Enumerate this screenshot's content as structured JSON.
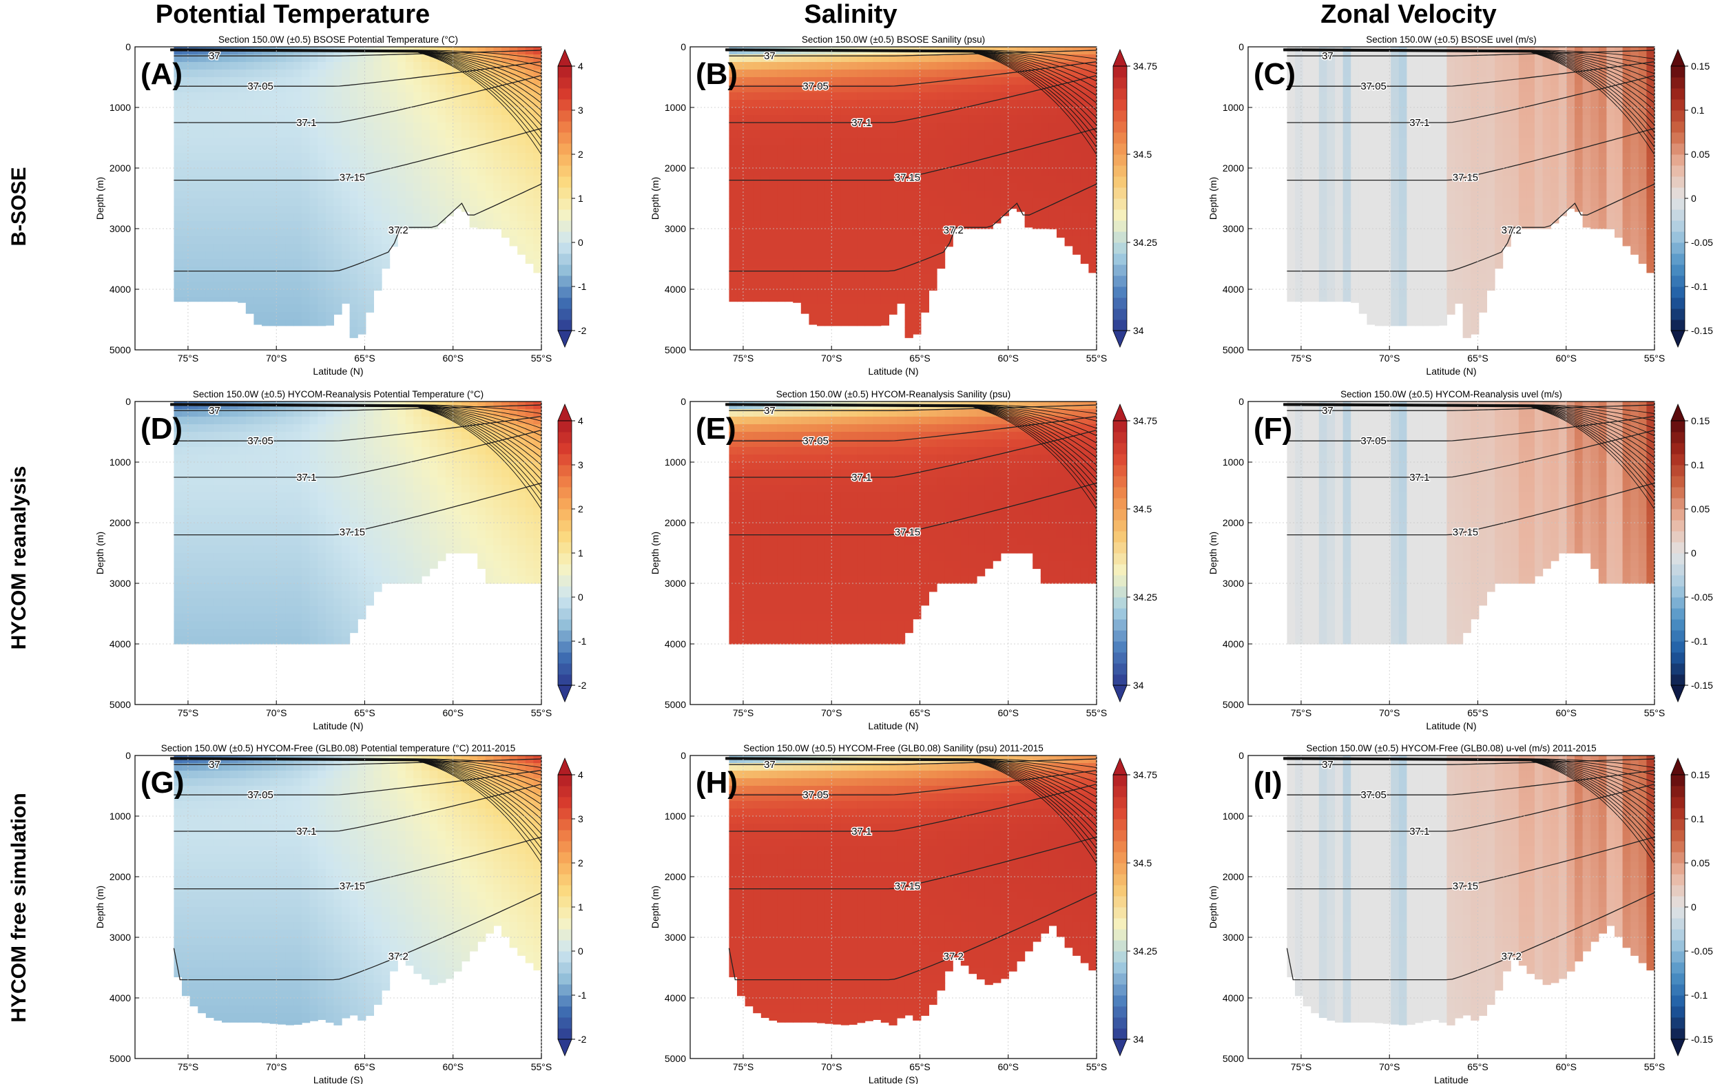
{
  "figure": {
    "column_titles": [
      "Potential Temperature",
      "Salinity",
      "Zonal Velocity"
    ],
    "row_titles": [
      "B-SOSE",
      "HYCOM reanalysis",
      "HYCOM free simulation"
    ]
  },
  "colormaps": {
    "theta": [
      "#2c3a8f",
      "#3f6fb3",
      "#8fbcd8",
      "#cfe6ef",
      "#f6f3c2",
      "#fbdc82",
      "#f9b05d",
      "#ee7b44",
      "#d93d2e",
      "#b11d24"
    ],
    "salt": [
      "#2c3a8f",
      "#4d7fbd",
      "#a6cfe2",
      "#f6f3c2",
      "#f7c671",
      "#ef8d4d",
      "#dd4a33",
      "#b11d24"
    ],
    "uvel": [
      "#0e1b47",
      "#1d5aa3",
      "#4f93c6",
      "#a8cbe0",
      "#e3e3e3",
      "#e9b49f",
      "#cf6a46",
      "#a72a1d",
      "#5c0b0d"
    ]
  },
  "chart_data": [
    {
      "type": "heatmap",
      "panel_label": "(A)",
      "title": "Section 150.0W (±0.5) BSOSE Potential Temperature (°C)",
      "xlabel": "Latitude (N)",
      "ylabel": "Depth (m)",
      "x_ticks": [
        "75°S",
        "70°S",
        "65°S",
        "60°S",
        "55°S"
      ],
      "y_ticks": [
        "0",
        "1000",
        "2000",
        "3000",
        "4000",
        "5000"
      ],
      "xlim": [
        -78,
        -55
      ],
      "ylim": [
        5000,
        0
      ],
      "colorbar": {
        "ticks": [
          "-2",
          "-1",
          "0",
          "1",
          "2",
          "3",
          "4"
        ],
        "range": [
          -2,
          4
        ],
        "cmap": "theta"
      },
      "sigma_labels": [
        "37",
        "37.05",
        "37.1",
        "37.15",
        "37.2"
      ],
      "bottom_profile": "bsose",
      "variable": "theta"
    },
    {
      "type": "heatmap",
      "panel_label": "(B)",
      "title": "Section 150.0W (±0.5) BSOSE Sanility (psu)",
      "xlabel": "Latitude (N)",
      "ylabel": "Depth (m)",
      "x_ticks": [
        "75°S",
        "70°S",
        "65°S",
        "60°S",
        "55°S"
      ],
      "y_ticks": [
        "0",
        "1000",
        "2000",
        "3000",
        "4000",
        "5000"
      ],
      "xlim": [
        -78,
        -55
      ],
      "ylim": [
        5000,
        0
      ],
      "colorbar": {
        "ticks": [
          "34",
          "34.25",
          "34.5",
          "34.75"
        ],
        "range": [
          34,
          34.75
        ],
        "cmap": "salt"
      },
      "sigma_labels": [
        "37",
        "37.05",
        "37.1",
        "37.15",
        "37.2"
      ],
      "bottom_profile": "bsose",
      "variable": "salt"
    },
    {
      "type": "heatmap",
      "panel_label": "(C)",
      "title": "Section 150.0W (±0.5) BSOSE uvel (m/s)",
      "xlabel": "Latitude (N)",
      "ylabel": "Depth (m)",
      "x_ticks": [
        "75°S",
        "70°S",
        "65°S",
        "60°S",
        "55°S"
      ],
      "y_ticks": [
        "0",
        "1000",
        "2000",
        "3000",
        "4000",
        "5000"
      ],
      "xlim": [
        -78,
        -55
      ],
      "ylim": [
        5000,
        0
      ],
      "colorbar": {
        "ticks": [
          "-0.15",
          "-0.1",
          "-0.05",
          "0",
          "0.05",
          "0.1",
          "0.15"
        ],
        "range": [
          -0.15,
          0.15
        ],
        "cmap": "uvel"
      },
      "sigma_labels": [
        "37",
        "37.05",
        "37.1",
        "37.15",
        "37.2"
      ],
      "bottom_profile": "bsose",
      "variable": "uvel"
    },
    {
      "type": "heatmap",
      "panel_label": "(D)",
      "title": "Section 150.0W (±0.5) HYCOM-Reanalysis Potential Temperature (°C)",
      "xlabel": "Latitude (N)",
      "ylabel": "Depth (m)",
      "x_ticks": [
        "75°S",
        "70°S",
        "65°S",
        "60°S",
        "55°S"
      ],
      "y_ticks": [
        "0",
        "1000",
        "2000",
        "3000",
        "4000",
        "5000"
      ],
      "xlim": [
        -78,
        -55
      ],
      "ylim": [
        5000,
        0
      ],
      "colorbar": {
        "ticks": [
          "-2",
          "-1",
          "0",
          "1",
          "2",
          "3",
          "4"
        ],
        "range": [
          -2,
          4
        ],
        "cmap": "theta"
      },
      "sigma_labels": [
        "37",
        "37.05",
        "37.1",
        "37.15"
      ],
      "bottom_profile": "reanalysis",
      "variable": "theta"
    },
    {
      "type": "heatmap",
      "panel_label": "(E)",
      "title": "Section 150.0W (±0.5) HYCOM-Reanalysis Sanility (psu)",
      "xlabel": "Latitude (N)",
      "ylabel": "Depth (m)",
      "x_ticks": [
        "75°S",
        "70°S",
        "65°S",
        "60°S",
        "55°S"
      ],
      "y_ticks": [
        "0",
        "1000",
        "2000",
        "3000",
        "4000",
        "5000"
      ],
      "xlim": [
        -78,
        -55
      ],
      "ylim": [
        5000,
        0
      ],
      "colorbar": {
        "ticks": [
          "34",
          "34.25",
          "34.5",
          "34.75"
        ],
        "range": [
          34,
          34.75
        ],
        "cmap": "salt"
      },
      "sigma_labels": [
        "37",
        "37.05",
        "37.1",
        "37.15"
      ],
      "bottom_profile": "reanalysis",
      "variable": "salt"
    },
    {
      "type": "heatmap",
      "panel_label": "(F)",
      "title": "Section 150.0W (±0.5) HYCOM-Reanalysis uvel (m/s)",
      "xlabel": "Latitude (N)",
      "ylabel": "Depth (m)",
      "x_ticks": [
        "75°S",
        "70°S",
        "65°S",
        "60°S",
        "55°S"
      ],
      "y_ticks": [
        "0",
        "1000",
        "2000",
        "3000",
        "4000",
        "5000"
      ],
      "xlim": [
        -78,
        -55
      ],
      "ylim": [
        5000,
        0
      ],
      "colorbar": {
        "ticks": [
          "-0.15",
          "-0.1",
          "-0.05",
          "0",
          "0.05",
          "0.1",
          "0.15"
        ],
        "range": [
          -0.15,
          0.15
        ],
        "cmap": "uvel"
      },
      "sigma_labels": [
        "37",
        "37.05",
        "37.1",
        "37.15"
      ],
      "bottom_profile": "reanalysis",
      "variable": "uvel"
    },
    {
      "type": "heatmap",
      "panel_label": "(G)",
      "title": "Section 150.0W (±0.5) HYCOM-Free (GLB0.08) Potential temperature (°C) 2011-2015",
      "xlabel": "Latitude (S)",
      "ylabel": "Depth (m)",
      "x_ticks": [
        "75°S",
        "70°S",
        "65°S",
        "60°S",
        "55°S"
      ],
      "y_ticks": [
        "0",
        "1000",
        "2000",
        "3000",
        "4000",
        "5000"
      ],
      "xlim": [
        -78,
        -55
      ],
      "ylim": [
        5000,
        0
      ],
      "colorbar": {
        "ticks": [
          "-2",
          "-1",
          "0",
          "1",
          "2",
          "3",
          "4"
        ],
        "range": [
          -2,
          4
        ],
        "cmap": "theta"
      },
      "sigma_labels": [
        "37",
        "37.05",
        "37.1",
        "37.15",
        "37.2"
      ],
      "bottom_profile": "free",
      "variable": "theta"
    },
    {
      "type": "heatmap",
      "panel_label": "(H)",
      "title": "Section 150.0W (±0.5) HYCOM-Free (GLB0.08) Sanility (psu) 2011-2015",
      "xlabel": "Latitude (S)",
      "ylabel": "Depth (m)",
      "x_ticks": [
        "75°S",
        "70°S",
        "65°S",
        "60°S",
        "55°S"
      ],
      "y_ticks": [
        "0",
        "1000",
        "2000",
        "3000",
        "4000",
        "5000"
      ],
      "xlim": [
        -78,
        -55
      ],
      "ylim": [
        5000,
        0
      ],
      "colorbar": {
        "ticks": [
          "34",
          "34.25",
          "34.5",
          "34.75"
        ],
        "range": [
          34,
          34.75
        ],
        "cmap": "salt"
      },
      "sigma_labels": [
        "37",
        "37.05",
        "37.1",
        "37.15",
        "37.2"
      ],
      "bottom_profile": "free",
      "variable": "salt"
    },
    {
      "type": "heatmap",
      "panel_label": "(I)",
      "title": "Section 150.0W (±0.5) HYCOM-Free (GLB0.08) u-vel (m/s) 2011-2015",
      "xlabel": "Latitude",
      "ylabel": "Depth (m)",
      "x_ticks": [
        "75°S",
        "70°S",
        "65°S",
        "60°S",
        "55°S"
      ],
      "y_ticks": [
        "0",
        "1000",
        "2000",
        "3000",
        "4000",
        "5000"
      ],
      "xlim": [
        -78,
        -55
      ],
      "ylim": [
        5000,
        0
      ],
      "colorbar": {
        "ticks": [
          "-0.15",
          "-0.1",
          "-0.05",
          "0",
          "0.05",
          "0.1",
          "0.15"
        ],
        "range": [
          -0.15,
          0.15
        ],
        "cmap": "uvel"
      },
      "sigma_labels": [
        "37",
        "37.05",
        "37.1",
        "37.15",
        "37.2"
      ],
      "bottom_profile": "free",
      "variable": "uvel"
    }
  ]
}
